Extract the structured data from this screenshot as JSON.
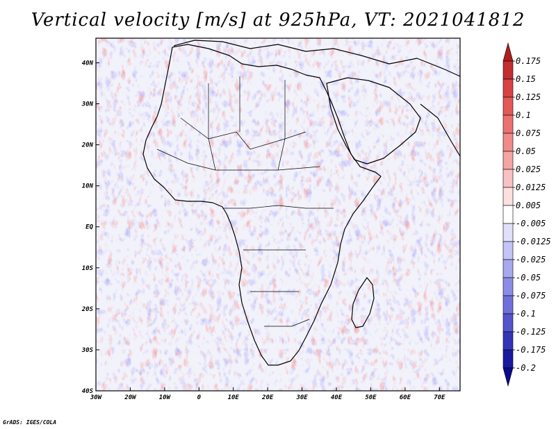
{
  "title": "Vertical velocity [m/s] at 925hPa, VT: 2021041812",
  "credit": "GrADS: IGES/COLA",
  "map": {
    "projection": "latlon",
    "lon_range": [
      -30,
      76
    ],
    "lat_range": [
      -40,
      46
    ],
    "lat_ticks": [
      {
        "value": 40,
        "label": "40N"
      },
      {
        "value": 30,
        "label": "30N"
      },
      {
        "value": 20,
        "label": "20N"
      },
      {
        "value": 10,
        "label": "10N"
      },
      {
        "value": 0,
        "label": "EQ"
      },
      {
        "value": -10,
        "label": "10S"
      },
      {
        "value": -20,
        "label": "20S"
      },
      {
        "value": -30,
        "label": "30S"
      },
      {
        "value": -40,
        "label": "40S"
      }
    ],
    "lon_ticks": [
      {
        "value": -30,
        "label": "30W"
      },
      {
        "value": -20,
        "label": "20W"
      },
      {
        "value": -10,
        "label": "10W"
      },
      {
        "value": 0,
        "label": "0"
      },
      {
        "value": 10,
        "label": "10E"
      },
      {
        "value": 20,
        "label": "20E"
      },
      {
        "value": 30,
        "label": "30E"
      },
      {
        "value": 40,
        "label": "40E"
      },
      {
        "value": 50,
        "label": "50E"
      },
      {
        "value": 60,
        "label": "60E"
      },
      {
        "value": 70,
        "label": "70E"
      }
    ]
  },
  "colorbar": {
    "labels": [
      "0.175",
      "0.15",
      "0.125",
      "0.1",
      "0.075",
      "0.05",
      "0.025",
      "0.0125",
      "0.005",
      "-0.005",
      "-0.0125",
      "-0.025",
      "-0.05",
      "-0.075",
      "-0.1",
      "-0.125",
      "-0.175",
      "-0.2"
    ],
    "colors": [
      "#b01e1e",
      "#c42e2e",
      "#d84242",
      "#e45858",
      "#ec7070",
      "#f28a8a",
      "#f6a4a4",
      "#f9c2c2",
      "#fce0e0",
      "#ffffff",
      "#e0e0fa",
      "#c4c4f6",
      "#a8a8f0",
      "#8c8ce8",
      "#7070dc",
      "#5454cc",
      "#3434b8",
      "#1a1aa0",
      "#0a0a8c"
    ]
  }
}
